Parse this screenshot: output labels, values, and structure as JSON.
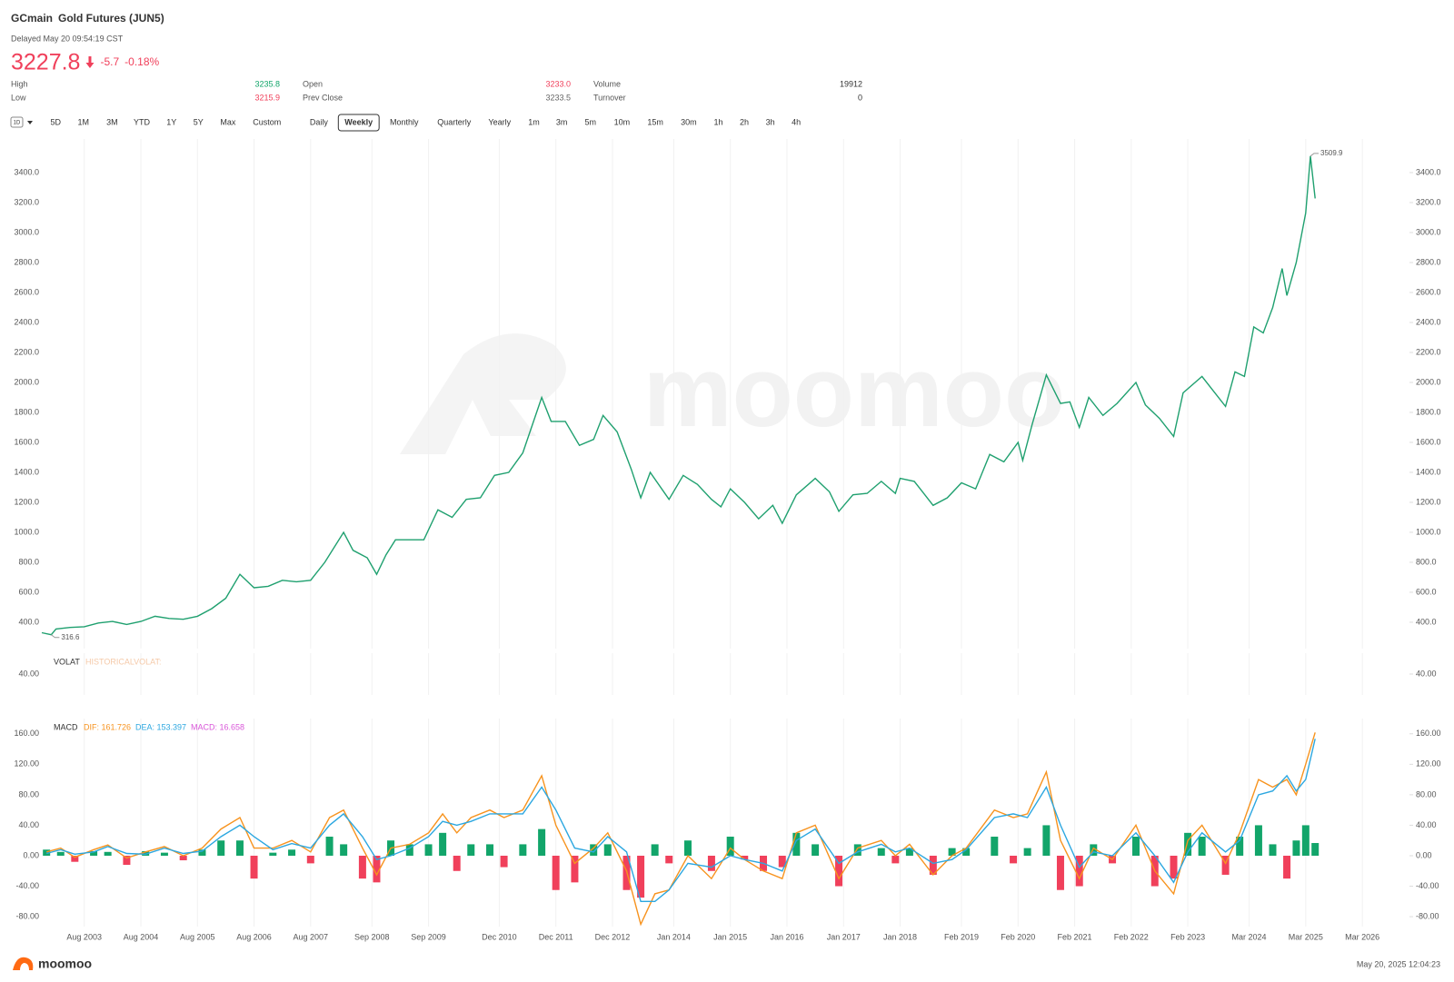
{
  "header": {
    "symbol": "GCmain",
    "name": "Gold Futures (JUN5)",
    "status": "Delayed May 20 09:54:19 CST",
    "price": "3227.8",
    "change": "-5.7",
    "change_pct": "-0.18%",
    "color": "#f0405b"
  },
  "stats": [
    {
      "label": "High",
      "value": "3235.8",
      "color": "#12a56a"
    },
    {
      "label": "Low",
      "value": "3215.9",
      "color": "#f0405b"
    },
    {
      "label": "Open",
      "value": "3233.0",
      "color": "#f0405b"
    },
    {
      "label": "Prev Close",
      "value": "3233.5",
      "color": "#666666"
    },
    {
      "label": "Volume",
      "value": "19912",
      "color": "#333333"
    },
    {
      "label": "Turnover",
      "value": "0",
      "color": "#333333"
    }
  ],
  "toolbar": {
    "chart_style": "1D",
    "periods": [
      "5D",
      "1M",
      "3M",
      "YTD",
      "1Y",
      "5Y",
      "Max",
      "Custom"
    ],
    "intervals": [
      "Daily",
      "Weekly",
      "Monthly",
      "Quarterly",
      "Yearly",
      "1m",
      "3m",
      "5m",
      "10m",
      "15m",
      "30m",
      "1h",
      "2h",
      "3h",
      "4h"
    ],
    "selected_interval": 1
  },
  "watermark": "moomoo",
  "footer": {
    "brand": "moomoo",
    "timestamp": "May 20, 2025 12:04:23"
  },
  "chart_data": [
    {
      "type": "line",
      "color": "#1fa06f",
      "x": [
        "2002-11",
        "2003-01",
        "2003-02",
        "2003-05",
        "2003-08",
        "2003-11",
        "2004-02",
        "2004-05",
        "2004-08",
        "2004-11",
        "2005-02",
        "2005-05",
        "2005-08",
        "2005-11",
        "2006-02",
        "2006-05",
        "2006-08",
        "2006-11",
        "2007-02",
        "2007-05",
        "2007-08",
        "2007-11",
        "2008-03",
        "2008-05",
        "2008-08",
        "2008-10",
        "2008-12",
        "2009-02",
        "2009-05",
        "2009-08",
        "2009-11",
        "2010-02",
        "2010-05",
        "2010-08",
        "2010-11",
        "2011-02",
        "2011-05",
        "2011-09",
        "2011-11",
        "2012-02",
        "2012-05",
        "2012-08",
        "2012-10",
        "2013-01",
        "2013-04",
        "2013-06",
        "2013-08",
        "2013-12",
        "2014-03",
        "2014-06",
        "2014-09",
        "2014-11",
        "2015-01",
        "2015-04",
        "2015-07",
        "2015-10",
        "2015-12",
        "2016-03",
        "2016-07",
        "2016-10",
        "2016-12",
        "2017-03",
        "2017-06",
        "2017-09",
        "2017-12",
        "2018-01",
        "2018-04",
        "2018-08",
        "2018-11",
        "2019-02",
        "2019-05",
        "2019-08",
        "2019-11",
        "2020-02",
        "2020-03",
        "2020-05",
        "2020-08",
        "2020-11",
        "2021-01",
        "2021-03",
        "2021-05",
        "2021-08",
        "2021-11",
        "2022-03",
        "2022-05",
        "2022-08",
        "2022-11",
        "2023-01",
        "2023-05",
        "2023-07",
        "2023-10",
        "2023-12",
        "2024-02",
        "2024-04",
        "2024-06",
        "2024-08",
        "2024-10",
        "2024-11",
        "2025-01",
        "2025-03",
        "2025-04",
        "2025-05"
      ],
      "values": [
        330,
        316.6,
        355,
        365,
        370,
        395,
        405,
        385,
        405,
        440,
        425,
        420,
        440,
        490,
        560,
        720,
        630,
        640,
        680,
        670,
        680,
        800,
        1000,
        880,
        830,
        720,
        850,
        950,
        950,
        950,
        1150,
        1100,
        1220,
        1230,
        1380,
        1400,
        1530,
        1900,
        1740,
        1740,
        1580,
        1620,
        1780,
        1670,
        1420,
        1230,
        1400,
        1220,
        1380,
        1320,
        1220,
        1170,
        1290,
        1200,
        1090,
        1180,
        1060,
        1250,
        1360,
        1270,
        1140,
        1250,
        1260,
        1340,
        1260,
        1360,
        1340,
        1180,
        1230,
        1330,
        1290,
        1520,
        1470,
        1600,
        1480,
        1720,
        2050,
        1860,
        1870,
        1700,
        1900,
        1780,
        1860,
        2000,
        1850,
        1760,
        1640,
        1930,
        2040,
        1960,
        1840,
        2070,
        2040,
        2370,
        2330,
        2500,
        2760,
        2580,
        2800,
        3130,
        3509.9,
        3227.8
      ],
      "max_label": 3509.9,
      "min_label": 316.6,
      "xlim": [
        "2002-11",
        "2027-01"
      ],
      "ylim": [
        224,
        3624
      ],
      "yticks": [
        {
          "value": 400,
          "label": "400.0"
        },
        {
          "value": 600,
          "label": "600.0"
        },
        {
          "value": 800,
          "label": "800.0"
        },
        {
          "value": 1000,
          "label": "1000.0"
        },
        {
          "value": 1200,
          "label": "1200.0"
        },
        {
          "value": 1400,
          "label": "1400.0"
        },
        {
          "value": 1600,
          "label": "1600.0"
        },
        {
          "value": 1800,
          "label": "1800.0"
        },
        {
          "value": 2000,
          "label": "2000.0"
        },
        {
          "value": 2200,
          "label": "2200.0"
        },
        {
          "value": 2400,
          "label": "2400.0"
        },
        {
          "value": 2600,
          "label": "2600.0"
        },
        {
          "value": 2800,
          "label": "2800.0"
        },
        {
          "value": 3000,
          "label": "3000.0"
        },
        {
          "value": 3200,
          "label": "3200.0"
        },
        {
          "value": 3400,
          "label": "3400.0"
        }
      ],
      "grid": true
    },
    {
      "type": "indicator",
      "title": "VOLAT",
      "subtitle": "HISTORICALVOLAT:",
      "subtitle_color": "#f5c9a8",
      "ylim": [
        35,
        45
      ],
      "yticks": [
        {
          "value": 40,
          "label": "40.00"
        }
      ]
    },
    {
      "type": "macd",
      "title": "MACD",
      "x": [
        "2002-12",
        "2003-03",
        "2003-06",
        "2003-10",
        "2004-01",
        "2004-05",
        "2004-09",
        "2005-01",
        "2005-05",
        "2005-09",
        "2006-01",
        "2006-05",
        "2006-08",
        "2006-12",
        "2007-04",
        "2007-08",
        "2007-12",
        "2008-03",
        "2008-07",
        "2008-10",
        "2009-01",
        "2009-05",
        "2009-09",
        "2009-12",
        "2010-03",
        "2010-06",
        "2010-10",
        "2011-01",
        "2011-05",
        "2011-09",
        "2011-12",
        "2012-04",
        "2012-08",
        "2012-11",
        "2013-03",
        "2013-06",
        "2013-09",
        "2013-12",
        "2014-04",
        "2014-09",
        "2015-01",
        "2015-04",
        "2015-08",
        "2015-12",
        "2016-03",
        "2016-07",
        "2016-12",
        "2017-04",
        "2017-09",
        "2017-12",
        "2018-03",
        "2018-08",
        "2018-12",
        "2019-03",
        "2019-09",
        "2020-01",
        "2020-04",
        "2020-08",
        "2020-11",
        "2021-03",
        "2021-06",
        "2021-10",
        "2022-03",
        "2022-07",
        "2022-11",
        "2023-02",
        "2023-05",
        "2023-10",
        "2024-01",
        "2024-05",
        "2024-08",
        "2024-11",
        "2025-01",
        "2025-03",
        "2025-05"
      ],
      "series": [
        {
          "name": "DIF: 161.726",
          "color": "#f7931e",
          "values": [
            5,
            10,
            -2,
            8,
            14,
            -3,
            5,
            12,
            0,
            10,
            35,
            50,
            10,
            10,
            20,
            5,
            50,
            60,
            10,
            -25,
            10,
            15,
            30,
            55,
            30,
            50,
            60,
            50,
            60,
            105,
            40,
            -10,
            10,
            30,
            -20,
            -90,
            -50,
            -45,
            0,
            -30,
            10,
            -5,
            -20,
            -30,
            30,
            40,
            -30,
            10,
            20,
            0,
            15,
            -25,
            0,
            10,
            60,
            50,
            55,
            110,
            20,
            -30,
            10,
            -5,
            40,
            -20,
            -50,
            20,
            40,
            -10,
            30,
            100,
            90,
            100,
            80,
            120,
            161.726
          ]
        },
        {
          "name": "DEA: 153.397",
          "color": "#2ca7e0",
          "values": [
            3,
            8,
            2,
            5,
            12,
            3,
            2,
            10,
            3,
            6,
            25,
            40,
            25,
            8,
            16,
            10,
            40,
            55,
            25,
            -5,
            0,
            10,
            25,
            45,
            40,
            45,
            55,
            55,
            55,
            90,
            60,
            10,
            5,
            25,
            5,
            -60,
            -60,
            -45,
            -10,
            -15,
            0,
            -5,
            -10,
            -20,
            20,
            35,
            -10,
            5,
            15,
            5,
            10,
            -10,
            -5,
            8,
            50,
            55,
            50,
            90,
            40,
            -15,
            5,
            0,
            30,
            0,
            -35,
            5,
            30,
            5,
            20,
            80,
            85,
            105,
            85,
            100,
            153.397
          ]
        },
        {
          "name": "MACD: 16.658",
          "color": "#d957d9",
          "bars": true,
          "pos_color": "#12a56a",
          "neg_color": "#f0405b",
          "values": [
            8,
            5,
            -8,
            6,
            5,
            -12,
            6,
            4,
            -6,
            8,
            20,
            20,
            -30,
            4,
            8,
            -10,
            25,
            15,
            -30,
            -35,
            20,
            15,
            15,
            30,
            -20,
            15,
            15,
            -15,
            15,
            35,
            -45,
            -35,
            15,
            15,
            -45,
            -55,
            15,
            -10,
            20,
            -20,
            25,
            -5,
            -20,
            -15,
            30,
            15,
            -40,
            15,
            10,
            -10,
            10,
            -25,
            10,
            10,
            25,
            -10,
            10,
            40,
            -45,
            -40,
            15,
            -10,
            25,
            -40,
            -30,
            30,
            25,
            -25,
            25,
            40,
            15,
            -30,
            20,
            40,
            16.658
          ]
        }
      ],
      "xlim": [
        "2002-11",
        "2027-01"
      ],
      "ylim": [
        -93,
        180
      ],
      "yticks": [
        {
          "value": -80,
          "label": "-80.00"
        },
        {
          "value": -40,
          "label": "-40.00"
        },
        {
          "value": 0,
          "label": "0.00"
        },
        {
          "value": 40,
          "label": "40.00"
        },
        {
          "value": 80,
          "label": "80.00"
        },
        {
          "value": 120,
          "label": "120.00"
        },
        {
          "value": 160,
          "label": "160.00"
        }
      ],
      "xticks": [
        {
          "value": "2003-08",
          "label": "Aug 2003"
        },
        {
          "value": "2004-08",
          "label": "Aug 2004"
        },
        {
          "value": "2005-08",
          "label": "Aug 2005"
        },
        {
          "value": "2006-08",
          "label": "Aug 2006"
        },
        {
          "value": "2007-08",
          "label": "Aug 2007"
        },
        {
          "value": "2008-09",
          "label": "Sep 2008"
        },
        {
          "value": "2009-09",
          "label": "Sep 2009"
        },
        {
          "value": "2010-12",
          "label": "Dec 2010"
        },
        {
          "value": "2011-12",
          "label": "Dec 2011"
        },
        {
          "value": "2012-12",
          "label": "Dec 2012"
        },
        {
          "value": "2014-01",
          "label": "Jan 2014"
        },
        {
          "value": "2015-01",
          "label": "Jan 2015"
        },
        {
          "value": "2016-01",
          "label": "Jan 2016"
        },
        {
          "value": "2017-01",
          "label": "Jan 2017"
        },
        {
          "value": "2018-01",
          "label": "Jan 2018"
        },
        {
          "value": "2019-02",
          "label": "Feb 2019"
        },
        {
          "value": "2020-02",
          "label": "Feb 2020"
        },
        {
          "value": "2021-02",
          "label": "Feb 2021"
        },
        {
          "value": "2022-02",
          "label": "Feb 2022"
        },
        {
          "value": "2023-02",
          "label": "Feb 2023"
        },
        {
          "value": "2024-03",
          "label": "Mar 2024"
        },
        {
          "value": "2025-03",
          "label": "Mar 2025"
        },
        {
          "value": "2026-03",
          "label": "Mar 2026"
        }
      ],
      "grid": true
    }
  ]
}
